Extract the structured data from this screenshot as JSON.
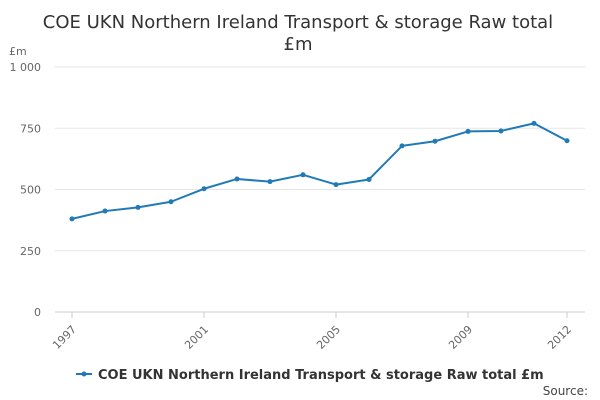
{
  "chart_data": {
    "type": "line",
    "title_lines": [
      "COE UKN Northern Ireland Transport & storage Raw total",
      "£m"
    ],
    "ylabel": "£m",
    "xlabel": "",
    "ylim": [
      0,
      1000
    ],
    "y_ticks": [
      0,
      250,
      500,
      750,
      1000
    ],
    "y_tick_labels": [
      "0",
      "250",
      "500",
      "750",
      "1 000"
    ],
    "x": [
      1997,
      1998,
      1999,
      2000,
      2001,
      2002,
      2003,
      2004,
      2005,
      2006,
      2007,
      2008,
      2009,
      2010,
      2011,
      2012
    ],
    "x_tick_labels": [
      "1997",
      "2001",
      "2005",
      "2009",
      "2012"
    ],
    "series": [
      {
        "name": "COE UKN Northern Ireland Transport & storage Raw total £m",
        "color": "#1f7ab7",
        "values": [
          380,
          412,
          427,
          450,
          503,
          543,
          532,
          560,
          520,
          541,
          678,
          697,
          737,
          739,
          770,
          699
        ]
      }
    ],
    "legend_position": "bottom",
    "grid": true,
    "source_label": "Source:"
  }
}
